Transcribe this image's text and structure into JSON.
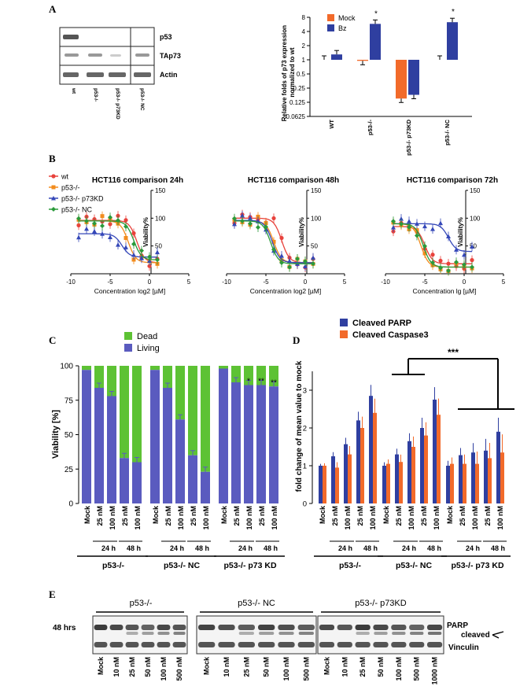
{
  "panels": {
    "A": "A",
    "B": "B",
    "C": "C",
    "D": "D",
    "E": "E"
  },
  "panelA": {
    "blot": {
      "bands": [
        "p53",
        "TAp73",
        "Actin"
      ],
      "lanes": [
        "wt",
        "p53-/-",
        "p53-/- p73KD",
        "p53-/- NC"
      ]
    },
    "chart_data": {
      "type": "bar",
      "ylabel": "Relative folds of p73 expression normalized to wt",
      "yscale": "log2",
      "yticks": [
        "8",
        "4",
        "2",
        "1",
        "0.5",
        "0.25",
        "0.125",
        "0.0625"
      ],
      "categories": [
        "WT",
        "p53-/-",
        "p53-/- p73KD",
        "p53-/- NC"
      ],
      "series": [
        {
          "name": "Mock",
          "color": "#f26a2a",
          "values": [
            1.0,
            0.95,
            0.15,
            1.0
          ]
        },
        {
          "name": "Bz",
          "color": "#2f3fa0",
          "values": [
            1.3,
            5.8,
            0.18,
            6.3
          ]
        }
      ],
      "annotations": [
        "*",
        "*"
      ]
    }
  },
  "panelB": {
    "legend": [
      "wt",
      "p53-/-",
      "p53-/- p73KD",
      "p53-/- NC"
    ],
    "colors": [
      "#e8423c",
      "#f28c1e",
      "#3447b8",
      "#2a9a3a"
    ],
    "yaxis": "Viability%",
    "yticks": [
      "50",
      "100",
      "150"
    ],
    "xticks": [
      "-10",
      "-5",
      "0",
      "5"
    ],
    "charts": [
      {
        "title": "HCT116 comparison 24h",
        "xlabel": "Concentration log2 [µM]"
      },
      {
        "title": "HCT116 comparison 48h",
        "xlabel": "Concentration log2 [µM]"
      },
      {
        "title": "HCT116 comparison 72h",
        "xlabel": "Concentration lg [µM]"
      }
    ],
    "chart_data": {
      "type": "line",
      "x_range": [
        -10,
        5
      ],
      "y_range": [
        0,
        150
      ],
      "note": "dose-response curves, 4 series per chart"
    }
  },
  "panelC": {
    "chart_data": {
      "type": "bar",
      "stacked": true,
      "ylabel": "Viability [%]",
      "yticks": [
        "0",
        "25",
        "50",
        "75",
        "100"
      ],
      "legend": [
        "Dead",
        "Living"
      ],
      "colors": {
        "dead": "#5dc234",
        "living": "#5a5bbf"
      },
      "categories": [
        "Mock",
        "25 nM",
        "100 nM",
        "25 nM",
        "100 nM"
      ],
      "groups": [
        {
          "name": "p53-/-",
          "living": [
            97,
            84,
            78,
            33,
            30
          ]
        },
        {
          "name": "p53-/- NC",
          "living": [
            97,
            84,
            61,
            35,
            23
          ]
        },
        {
          "name": "p53-/- p73 KD",
          "living": [
            98,
            88,
            86,
            86,
            85
          ]
        }
      ],
      "annotations": [
        "*",
        "**",
        "**"
      ],
      "time_labels": [
        "24 h",
        "48 h"
      ]
    }
  },
  "panelD": {
    "chart_data": {
      "type": "bar",
      "ylabel": "fold change of mean value to mock",
      "yticks": [
        "0",
        "1",
        "2",
        "3"
      ],
      "legend": [
        "Cleaved PARP",
        "Cleaved Caspase3"
      ],
      "colors": {
        "parp": "#2f3fa0",
        "casp": "#f26a2a"
      },
      "categories": [
        "Mock",
        "25 nM",
        "100 nM",
        "25 nM",
        "100 nM"
      ],
      "groups": [
        {
          "name": "p53-/-",
          "parp": [
            1.0,
            1.25,
            1.57,
            2.2,
            2.85
          ],
          "casp": [
            1.0,
            0.95,
            1.3,
            2.0,
            2.4
          ]
        },
        {
          "name": "p53-/- NC",
          "parp": [
            1.0,
            1.3,
            1.65,
            2.0,
            2.75
          ],
          "casp": [
            1.05,
            1.1,
            1.5,
            1.8,
            2.35
          ]
        },
        {
          "name": "p53-/- p73 KD",
          "parp": [
            1.0,
            1.28,
            1.35,
            1.4,
            1.9
          ],
          "casp": [
            1.05,
            1.05,
            1.05,
            1.2,
            1.35
          ]
        }
      ],
      "significance": "***",
      "time_labels": [
        "24 h",
        "48 h"
      ]
    }
  },
  "panelE": {
    "row_label": "48 hrs",
    "groups": [
      "p53-/-",
      "p53-/- NC",
      "p53-/- p73KD"
    ],
    "bands": [
      "PARP",
      "cleaved",
      "Vinculin"
    ],
    "lanes": [
      [
        "Mock",
        "10 nM",
        "25 nM",
        "50 nM",
        "100 nM",
        "500 nM"
      ],
      [
        "Mock",
        "10 nM",
        "25 nM",
        "50 nM",
        "100 nM",
        "500 nM"
      ],
      [
        "Mock",
        "10 nM",
        "25 nM",
        "50 nM",
        "100 nM",
        "500 nM",
        "1000 nM"
      ]
    ]
  }
}
